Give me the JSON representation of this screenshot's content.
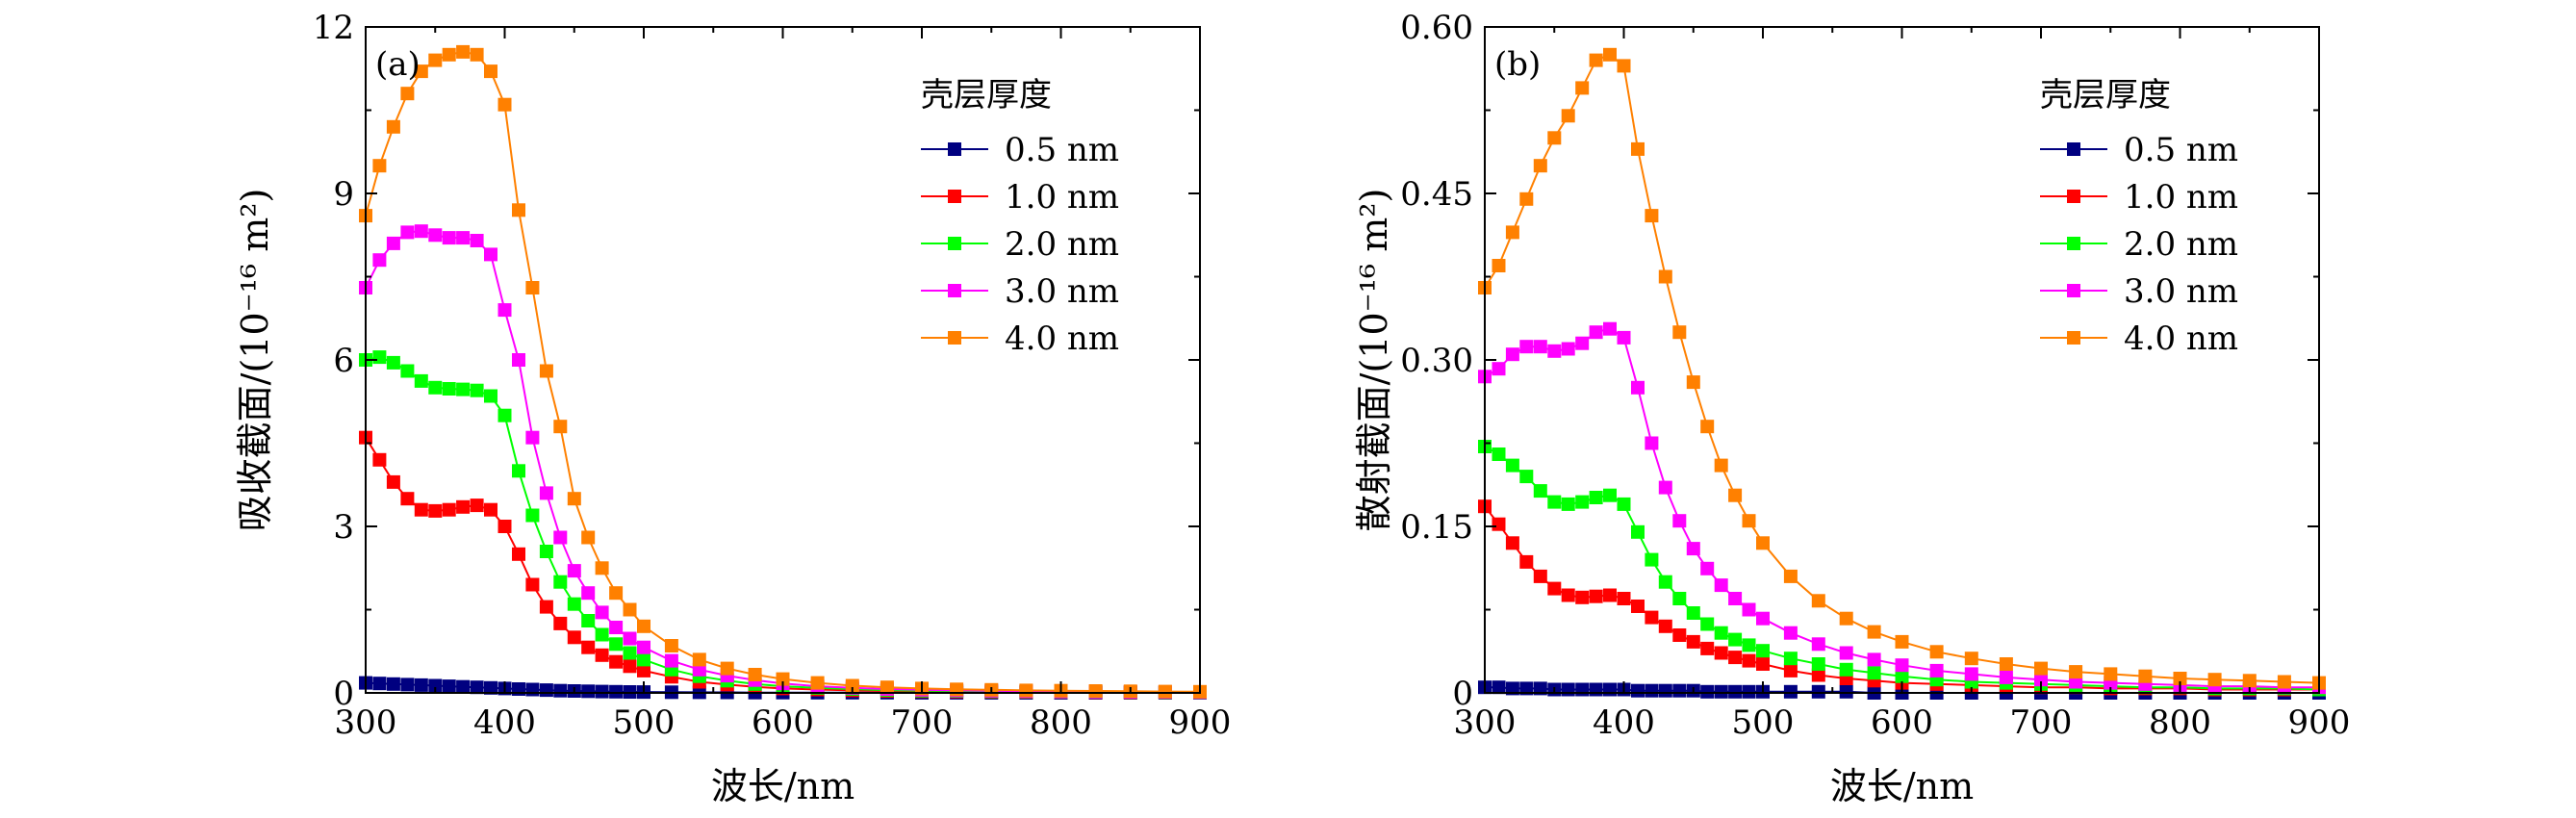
{
  "chart_data": [
    {
      "type": "line",
      "panel_label": "(a)",
      "xlabel": "波长/nm",
      "ylabel": "吸收截面/(10⁻¹⁶ m²)",
      "xlim": [
        300,
        900
      ],
      "ylim": [
        0,
        12
      ],
      "xticks": [
        "300",
        "400",
        "500",
        "600",
        "700",
        "800",
        "900"
      ],
      "yticks": [
        "0",
        "3",
        "6",
        "9",
        "12"
      ],
      "legend_title": "壳层厚度",
      "legend_position": "top-right",
      "x": [
        300,
        310,
        320,
        330,
        340,
        350,
        360,
        370,
        380,
        390,
        400,
        410,
        420,
        430,
        440,
        450,
        460,
        470,
        480,
        490,
        500,
        520,
        540,
        560,
        580,
        600,
        625,
        650,
        675,
        700,
        725,
        750,
        775,
        800,
        825,
        850,
        875,
        900
      ],
      "series": [
        {
          "name": "0.5 nm",
          "color": "#000080",
          "values": [
            0.18,
            0.17,
            0.16,
            0.15,
            0.14,
            0.13,
            0.12,
            0.11,
            0.1,
            0.09,
            0.08,
            0.07,
            0.06,
            0.05,
            0.04,
            0.035,
            0.03,
            0.025,
            0.02,
            0.018,
            0.015,
            0.012,
            0.01,
            0.008,
            0.006,
            0.005,
            0.004,
            0.003,
            0.003,
            0.002,
            0.002,
            0.002,
            0.001,
            0.001,
            0.001,
            0.001,
            0.001,
            0.001
          ]
        },
        {
          "name": "1.0 nm",
          "color": "#ff0000",
          "values": [
            4.6,
            4.2,
            3.8,
            3.5,
            3.3,
            3.28,
            3.3,
            3.35,
            3.38,
            3.3,
            3.0,
            2.5,
            1.95,
            1.55,
            1.25,
            1.0,
            0.82,
            0.68,
            0.56,
            0.48,
            0.4,
            0.29,
            0.2,
            0.15,
            0.11,
            0.08,
            0.06,
            0.045,
            0.035,
            0.03,
            0.025,
            0.02,
            0.018,
            0.015,
            0.012,
            0.01,
            0.01,
            0.01
          ]
        },
        {
          "name": "2.0 nm",
          "color": "#00ff00",
          "values": [
            6.0,
            6.05,
            5.95,
            5.8,
            5.62,
            5.5,
            5.48,
            5.47,
            5.45,
            5.35,
            5.0,
            4.0,
            3.2,
            2.55,
            2.0,
            1.6,
            1.3,
            1.05,
            0.88,
            0.72,
            0.6,
            0.42,
            0.3,
            0.22,
            0.16,
            0.12,
            0.09,
            0.07,
            0.05,
            0.04,
            0.035,
            0.03,
            0.025,
            0.02,
            0.018,
            0.015,
            0.012,
            0.01
          ]
        },
        {
          "name": "3.0 nm",
          "color": "#ff00ff",
          "values": [
            7.3,
            7.8,
            8.1,
            8.3,
            8.32,
            8.25,
            8.2,
            8.2,
            8.15,
            7.9,
            6.9,
            6.0,
            4.6,
            3.6,
            2.8,
            2.2,
            1.8,
            1.45,
            1.18,
            0.98,
            0.82,
            0.58,
            0.42,
            0.31,
            0.23,
            0.17,
            0.12,
            0.09,
            0.07,
            0.055,
            0.045,
            0.038,
            0.03,
            0.025,
            0.02,
            0.018,
            0.015,
            0.012
          ]
        },
        {
          "name": "4.0 nm",
          "color": "#ff8000",
          "values": [
            8.6,
            9.5,
            10.2,
            10.8,
            11.2,
            11.4,
            11.5,
            11.55,
            11.5,
            11.2,
            10.6,
            8.7,
            7.3,
            5.8,
            4.8,
            3.5,
            2.8,
            2.25,
            1.8,
            1.5,
            1.2,
            0.85,
            0.6,
            0.44,
            0.33,
            0.25,
            0.18,
            0.13,
            0.1,
            0.08,
            0.065,
            0.055,
            0.045,
            0.04,
            0.035,
            0.03,
            0.025,
            0.02
          ]
        }
      ]
    },
    {
      "type": "line",
      "panel_label": "(b)",
      "xlabel": "波长/nm",
      "ylabel": "散射截面/(10⁻¹⁶ m²)",
      "xlim": [
        300,
        900
      ],
      "ylim": [
        0,
        0.6
      ],
      "xticks": [
        "300",
        "400",
        "500",
        "600",
        "700",
        "800",
        "900"
      ],
      "yticks": [
        "0",
        "0.15",
        "0.30",
        "0.45",
        "0.60"
      ],
      "legend_title": "壳层厚度",
      "legend_position": "top-right",
      "x": [
        300,
        310,
        320,
        330,
        340,
        350,
        360,
        370,
        380,
        390,
        400,
        410,
        420,
        430,
        440,
        450,
        460,
        470,
        480,
        490,
        500,
        520,
        540,
        560,
        580,
        600,
        625,
        650,
        675,
        700,
        725,
        750,
        775,
        800,
        825,
        850,
        875,
        900
      ],
      "series": [
        {
          "name": "0.5 nm",
          "color": "#000080",
          "values": [
            0.005,
            0.005,
            0.004,
            0.004,
            0.004,
            0.003,
            0.003,
            0.003,
            0.003,
            0.003,
            0.003,
            0.002,
            0.002,
            0.002,
            0.002,
            0.002,
            0.001,
            0.001,
            0.001,
            0.001,
            0.001,
            0.001,
            0.001,
            0.001,
            0.0,
            0.0,
            0.0,
            0.0,
            0.0,
            0.0,
            0.0,
            0.0,
            0.0,
            0.0,
            0.0,
            0.0,
            0.0,
            0.0
          ]
        },
        {
          "name": "1.0 nm",
          "color": "#ff0000",
          "values": [
            0.168,
            0.152,
            0.135,
            0.118,
            0.105,
            0.094,
            0.088,
            0.086,
            0.087,
            0.088,
            0.085,
            0.078,
            0.068,
            0.06,
            0.052,
            0.046,
            0.04,
            0.036,
            0.032,
            0.029,
            0.026,
            0.02,
            0.016,
            0.013,
            0.011,
            0.009,
            0.008,
            0.007,
            0.006,
            0.005,
            0.005,
            0.004,
            0.004,
            0.004,
            0.003,
            0.003,
            0.003,
            0.003
          ]
        },
        {
          "name": "2.0 nm",
          "color": "#00ff00",
          "values": [
            0.222,
            0.215,
            0.205,
            0.195,
            0.182,
            0.172,
            0.17,
            0.172,
            0.176,
            0.178,
            0.17,
            0.145,
            0.12,
            0.1,
            0.085,
            0.072,
            0.062,
            0.054,
            0.048,
            0.043,
            0.038,
            0.031,
            0.026,
            0.021,
            0.018,
            0.015,
            0.012,
            0.01,
            0.009,
            0.008,
            0.007,
            0.006,
            0.005,
            0.005,
            0.004,
            0.004,
            0.004,
            0.003
          ]
        },
        {
          "name": "3.0 nm",
          "color": "#ff00ff",
          "values": [
            0.285,
            0.292,
            0.305,
            0.312,
            0.312,
            0.308,
            0.31,
            0.315,
            0.325,
            0.328,
            0.32,
            0.275,
            0.225,
            0.185,
            0.155,
            0.13,
            0.112,
            0.097,
            0.085,
            0.075,
            0.067,
            0.054,
            0.044,
            0.036,
            0.03,
            0.025,
            0.02,
            0.017,
            0.014,
            0.012,
            0.01,
            0.009,
            0.008,
            0.007,
            0.006,
            0.006,
            0.005,
            0.005
          ]
        },
        {
          "name": "4.0 nm",
          "color": "#ff8000",
          "values": [
            0.365,
            0.385,
            0.415,
            0.445,
            0.475,
            0.5,
            0.52,
            0.545,
            0.57,
            0.575,
            0.565,
            0.49,
            0.43,
            0.375,
            0.325,
            0.28,
            0.24,
            0.205,
            0.178,
            0.155,
            0.135,
            0.105,
            0.083,
            0.067,
            0.055,
            0.046,
            0.037,
            0.031,
            0.026,
            0.022,
            0.019,
            0.017,
            0.015,
            0.013,
            0.012,
            0.011,
            0.01,
            0.009
          ]
        }
      ]
    }
  ]
}
